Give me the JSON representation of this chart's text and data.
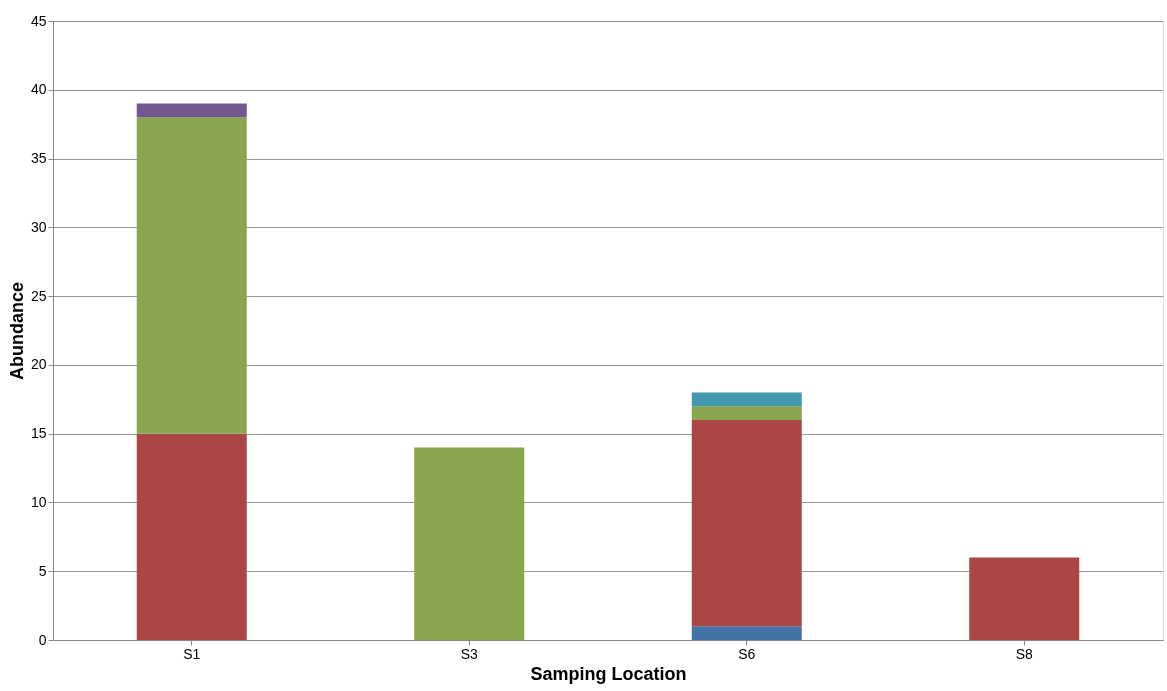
{
  "chart_data": {
    "type": "bar",
    "stacked": true,
    "xlabel": "Samping Location",
    "ylabel": "Abundance",
    "categories": [
      "S1",
      "S3",
      "S6",
      "S8"
    ],
    "series": [
      {
        "color": "#4572a7",
        "values": [
          null,
          null,
          1,
          null
        ]
      },
      {
        "color": "#aa4643",
        "values": [
          15,
          null,
          15,
          6
        ]
      },
      {
        "color": "#89a54e",
        "values": [
          23,
          14,
          1,
          null
        ]
      },
      {
        "color": "#71588f",
        "values": [
          1,
          null,
          null,
          null
        ]
      },
      {
        "color": "#4198af",
        "values": [
          null,
          null,
          1,
          null
        ]
      }
    ],
    "ylim": [
      0,
      45
    ],
    "yticks": [
      0,
      5,
      10,
      15,
      20,
      25,
      30,
      35,
      40,
      45
    ],
    "grid": "y",
    "legend": false
  }
}
